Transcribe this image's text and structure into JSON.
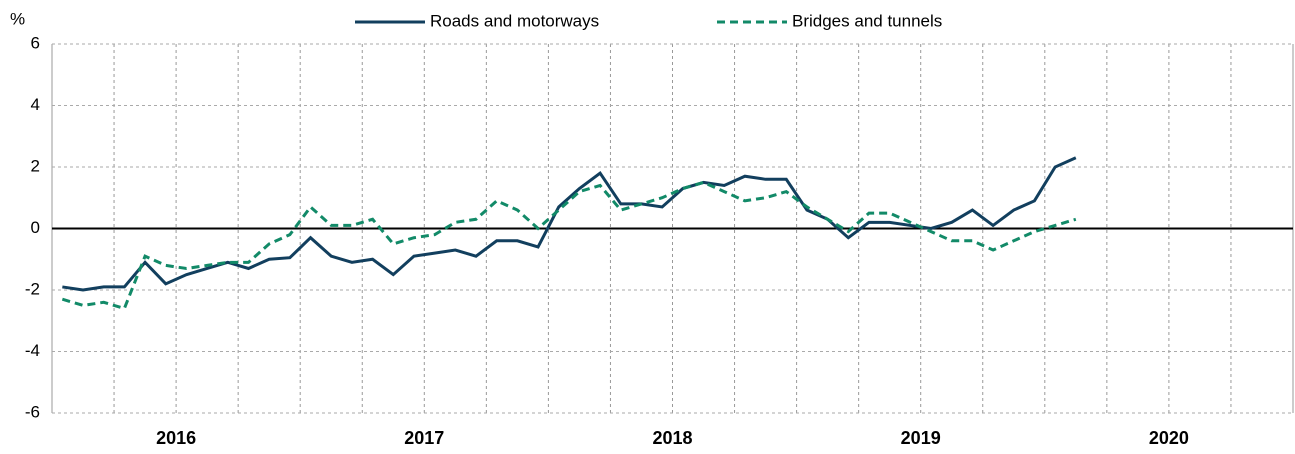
{
  "chart_data": {
    "type": "line",
    "y_label": "%",
    "year_labels": [
      "2016",
      "2017",
      "2018",
      "2019",
      "2020"
    ],
    "categories": [
      null,
      null,
      null,
      null,
      null,
      null,
      null,
      null,
      null,
      null,
      null,
      null,
      null,
      null,
      null,
      null,
      null,
      null,
      null,
      null,
      null,
      null,
      null,
      null,
      null,
      null,
      null,
      null,
      null,
      null,
      null,
      null,
      null,
      null,
      null,
      null,
      null,
      null,
      null,
      null,
      null,
      null,
      null,
      null,
      null,
      null,
      null,
      null,
      null,
      null,
      null,
      null,
      null,
      null,
      null,
      null,
      null,
      null,
      null,
      null
    ],
    "series": [
      {
        "name": "Roads and motorways",
        "color": "#123f5e",
        "dash": false,
        "values": [
          -1.9,
          -2.0,
          -1.9,
          -1.9,
          -1.1,
          -1.8,
          -1.5,
          -1.3,
          -1.1,
          -1.3,
          -1.0,
          -0.95,
          -0.3,
          -0.9,
          -1.1,
          -1.0,
          -1.5,
          -0.9,
          -0.8,
          -0.7,
          -0.9,
          -0.4,
          -0.4,
          -0.6,
          0.7,
          1.3,
          1.8,
          0.8,
          0.8,
          0.7,
          1.3,
          1.5,
          1.4,
          1.7,
          1.6,
          1.6,
          0.6,
          0.3,
          -0.3,
          0.2,
          0.2,
          0.1,
          0.0,
          0.2,
          0.6,
          0.1,
          0.6,
          0.9,
          2.0,
          2.3,
          null,
          null,
          null,
          null,
          null,
          null,
          null,
          null,
          null,
          null
        ]
      },
      {
        "name": "Bridges and tunnels",
        "color": "#128a68",
        "dash": true,
        "values": [
          -2.3,
          -2.5,
          -2.4,
          -2.6,
          -0.9,
          -1.2,
          -1.3,
          -1.2,
          -1.1,
          -1.1,
          -0.5,
          -0.2,
          0.7,
          0.1,
          0.1,
          0.3,
          -0.5,
          -0.3,
          -0.2,
          0.2,
          0.3,
          0.9,
          0.6,
          0.0,
          0.6,
          1.2,
          1.4,
          0.6,
          0.8,
          1.0,
          1.3,
          1.5,
          1.2,
          0.9,
          1.0,
          1.2,
          0.7,
          0.3,
          -0.1,
          0.5,
          0.5,
          0.2,
          -0.1,
          -0.4,
          -0.4,
          -0.7,
          -0.4,
          -0.1,
          0.1,
          0.3,
          null,
          null,
          null,
          null,
          null,
          null,
          null,
          null,
          null,
          null
        ]
      }
    ],
    "ylim": [
      -6,
      6
    ],
    "yticks": [
      6,
      4,
      2,
      0,
      -2,
      -4,
      -6
    ],
    "grid": true
  }
}
